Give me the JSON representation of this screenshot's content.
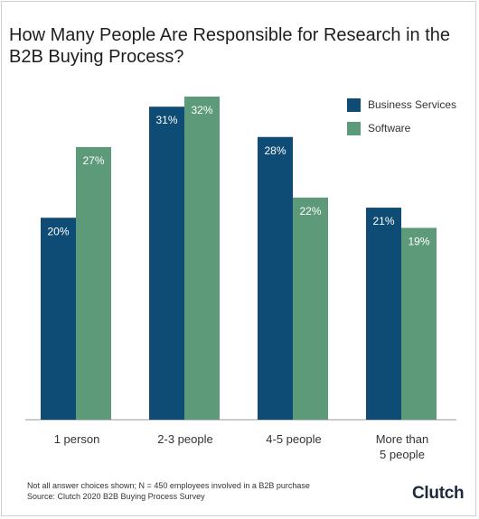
{
  "title": "How Many People Are Responsible for Research in the B2B Buying Process?",
  "legend": [
    {
      "label": "Business Services",
      "color": "#0f4c75"
    },
    {
      "label": "Software",
      "color": "#5d9a7a"
    }
  ],
  "categories": [
    {
      "label_line1": "1 person",
      "label_line2": ""
    },
    {
      "label_line1": "2-3 people",
      "label_line2": ""
    },
    {
      "label_line1": "4-5 people",
      "label_line2": ""
    },
    {
      "label_line1": "More than",
      "label_line2": "5 people"
    }
  ],
  "footnote": {
    "line1": "Not all answer choices shown; N = 450 employees involved in a B2B purchase",
    "line2": "Source: Clutch 2020 B2B Buying Process Survey"
  },
  "brand": "Clutch",
  "chart_data": {
    "type": "bar",
    "title": "How Many People Are Responsible for Research in the B2B Buying Process?",
    "categories": [
      "1 person",
      "2-3 people",
      "4-5 people",
      "More than 5 people"
    ],
    "series": [
      {
        "name": "Business Services",
        "color": "#0f4c75",
        "values": [
          20,
          31,
          28,
          21
        ],
        "labels": [
          "20%",
          "31%",
          "28%",
          "21%"
        ]
      },
      {
        "name": "Software",
        "color": "#5d9a7a",
        "values": [
          27,
          32,
          22,
          19
        ],
        "labels": [
          "27%",
          "32%",
          "22%",
          "19%"
        ]
      }
    ],
    "ylim": [
      0,
      32
    ],
    "grid": false,
    "legend_position": "top-right"
  }
}
